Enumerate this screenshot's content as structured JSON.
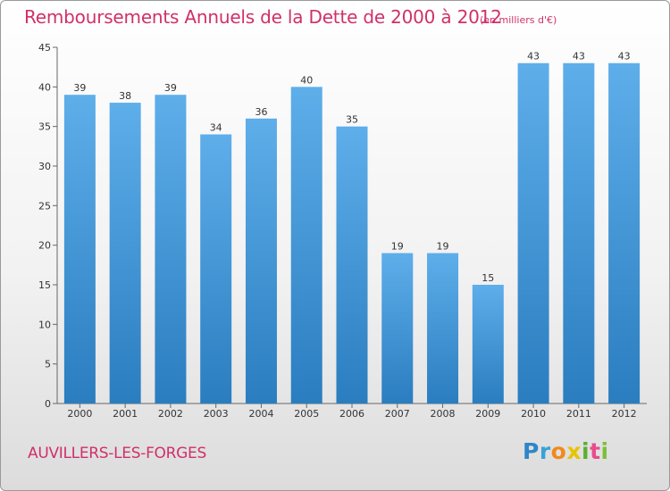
{
  "chart_data": {
    "type": "bar",
    "title": "Remboursements Annuels de la Dette de 2000 à 2012",
    "subtitle": "(en milliers d'€)",
    "xlabel": "",
    "ylabel": "",
    "categories": [
      "2000",
      "2001",
      "2002",
      "2003",
      "2004",
      "2005",
      "2006",
      "2007",
      "2008",
      "2009",
      "2010",
      "2011",
      "2012"
    ],
    "values": [
      39,
      38,
      39,
      34,
      36,
      40,
      35,
      19,
      19,
      15,
      43,
      43,
      43
    ],
    "ylim": [
      0,
      45
    ],
    "yticks": [
      0,
      5,
      10,
      15,
      20,
      25,
      30,
      35,
      40,
      45
    ],
    "grid": false,
    "bar_color": "#5aaae6",
    "bar_color_dark": "#2a7dbf"
  },
  "footer": {
    "commune": "AUVILLERS-LES-FORGES"
  },
  "brand": {
    "letters": [
      "P",
      "r",
      "o",
      "x",
      "i",
      "t",
      "i"
    ],
    "colors": [
      "#2e86c8",
      "#3aa0d8",
      "#f08a1c",
      "#e8c400",
      "#5ab030",
      "#e84c8c",
      "#7cbf3a"
    ]
  }
}
